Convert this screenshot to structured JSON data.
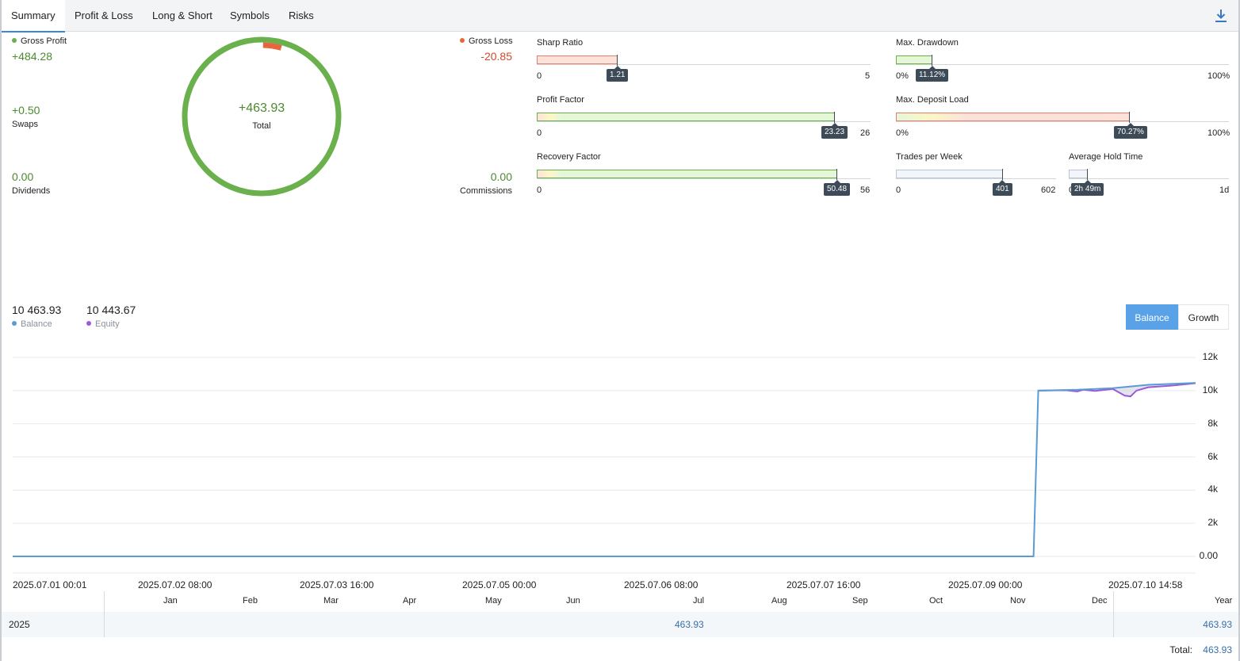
{
  "tabs": [
    "Summary",
    "Profit & Loss",
    "Long & Short",
    "Symbols",
    "Risks"
  ],
  "icons": {
    "download": "download-icon"
  },
  "summary": {
    "gross_profit_label": "Gross Profit",
    "gross_profit_value": "+484.28",
    "gross_loss_label": "Gross Loss",
    "gross_loss_value": "-20.85",
    "swaps_value": "+0.50",
    "swaps_label": "Swaps",
    "dividends_value": "0.00",
    "dividends_label": "Dividends",
    "commissions_value": "0.00",
    "commissions_label": "Commissions",
    "total_value": "+463.93",
    "total_label": "Total",
    "ring_loss_fraction": 0.041
  },
  "metrics": {
    "sharp_ratio": {
      "label": "Sharp Ratio",
      "min": "0",
      "max": "5",
      "value": "1.21",
      "fraction": 0.242
    },
    "max_drawdown": {
      "label": "Max. Drawdown",
      "min": "0%",
      "max": "100%",
      "value": "11.12%",
      "fraction": 0.1112
    },
    "profit_factor": {
      "label": "Profit Factor",
      "min": "0",
      "max": "26",
      "value": "23.23",
      "fraction": 0.893
    },
    "max_deposit_load": {
      "label": "Max. Deposit Load",
      "min": "0%",
      "max": "100%",
      "value": "70.27%",
      "fraction": 0.7027
    },
    "recovery_factor": {
      "label": "Recovery Factor",
      "min": "0",
      "max": "56",
      "value": "50.48",
      "fraction": 0.901
    },
    "trades_per_week": {
      "label": "Trades per Week",
      "min": "0",
      "max": "602",
      "value": "401",
      "fraction": 0.666
    },
    "average_hold_time": {
      "label": "Average Hold Time",
      "min": "0",
      "max": "1d",
      "value": "2h 49m",
      "fraction": 0.117
    }
  },
  "legend": {
    "balance_value": "10 463.93",
    "balance_label": "Balance",
    "equity_value": "10 443.67",
    "equity_label": "Equity",
    "balance_color": "#5b9bd5",
    "equity_color": "#9b59d9"
  },
  "toggles": {
    "balance": "Balance",
    "growth": "Growth"
  },
  "chart_data": {
    "type": "line",
    "x_ticks": [
      "2025.07.01 00:01",
      "2025.07.02 08:00",
      "2025.07.03 16:00",
      "2025.07.05 00:00",
      "2025.07.06 08:00",
      "2025.07.07 16:00",
      "2025.07.09 00:00",
      "2025.07.10 14:58"
    ],
    "y_ticks": [
      "12k",
      "10k",
      "8k",
      "6k",
      "4k",
      "2k",
      "0.00"
    ],
    "ylim": [
      0,
      12000
    ],
    "grid": true,
    "series": [
      {
        "name": "Balance",
        "x": [
          0,
          0.863,
          0.867,
          0.9,
          0.93,
          0.96,
          1.0
        ],
        "values": [
          0,
          0,
          10000,
          10050,
          10150,
          10350,
          10463.93
        ]
      },
      {
        "name": "Equity",
        "x": [
          0.867,
          0.89,
          0.9,
          0.905,
          0.915,
          0.93,
          0.94,
          0.945,
          0.95,
          0.96,
          0.98,
          1.0
        ],
        "values": [
          10000,
          10020,
          9950,
          10050,
          9980,
          10100,
          9700,
          9650,
          10000,
          10200,
          10300,
          10443.67
        ]
      }
    ]
  },
  "months": [
    "Jan",
    "Feb",
    "Mar",
    "Apr",
    "May",
    "Jun",
    "Jul",
    "Aug",
    "Sep",
    "Oct",
    "Nov",
    "Dec",
    "Year"
  ],
  "year_row": {
    "year": "2025",
    "jul_value": "463.93",
    "year_value": "463.93"
  },
  "total_row": {
    "label": "Total:",
    "value": "463.93"
  }
}
